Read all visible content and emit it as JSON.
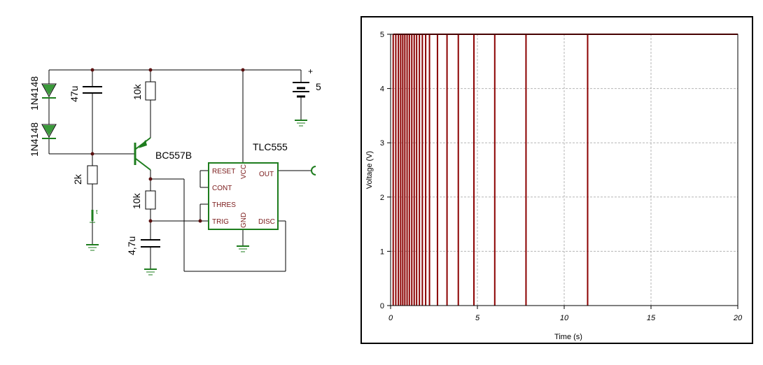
{
  "schematic": {
    "diode1": "1N4148",
    "diode2": "1N4148",
    "cap_top": "47u",
    "res_collector": "10k",
    "battery_plus": "+",
    "battery_value": "5",
    "transistor": "BC557B",
    "res_base": "2k",
    "res_emitter": "10k",
    "cap_bottom": "4,7u",
    "timer": "TLC555",
    "pins": {
      "reset": "RESET",
      "cont": "CONT",
      "thres": "THRES",
      "trig": "TRIG",
      "vcc": "VCC",
      "out": "OUT",
      "gnd": "GND",
      "disc": "DISC"
    },
    "switch_symbol": "t"
  },
  "chart_data": {
    "type": "line",
    "xlabel": "Time (s)",
    "ylabel": "Voltage (V)",
    "xlim": [
      0,
      20
    ],
    "ylim": [
      0,
      5
    ],
    "xticks": [
      0,
      5,
      10,
      15,
      20
    ],
    "yticks": [
      0,
      1,
      2,
      3,
      4,
      5
    ],
    "grid": true,
    "series": [
      {
        "color": "#8b0000",
        "high_level": 5,
        "low_level": 0,
        "pulse_times": [
          0.15,
          0.3,
          0.45,
          0.58,
          0.7,
          0.82,
          0.95,
          1.08,
          1.22,
          1.36,
          1.5,
          1.66,
          1.83,
          2.02,
          2.24,
          2.7,
          3.25,
          3.9,
          4.8,
          6.0,
          7.8,
          11.35
        ]
      }
    ]
  }
}
